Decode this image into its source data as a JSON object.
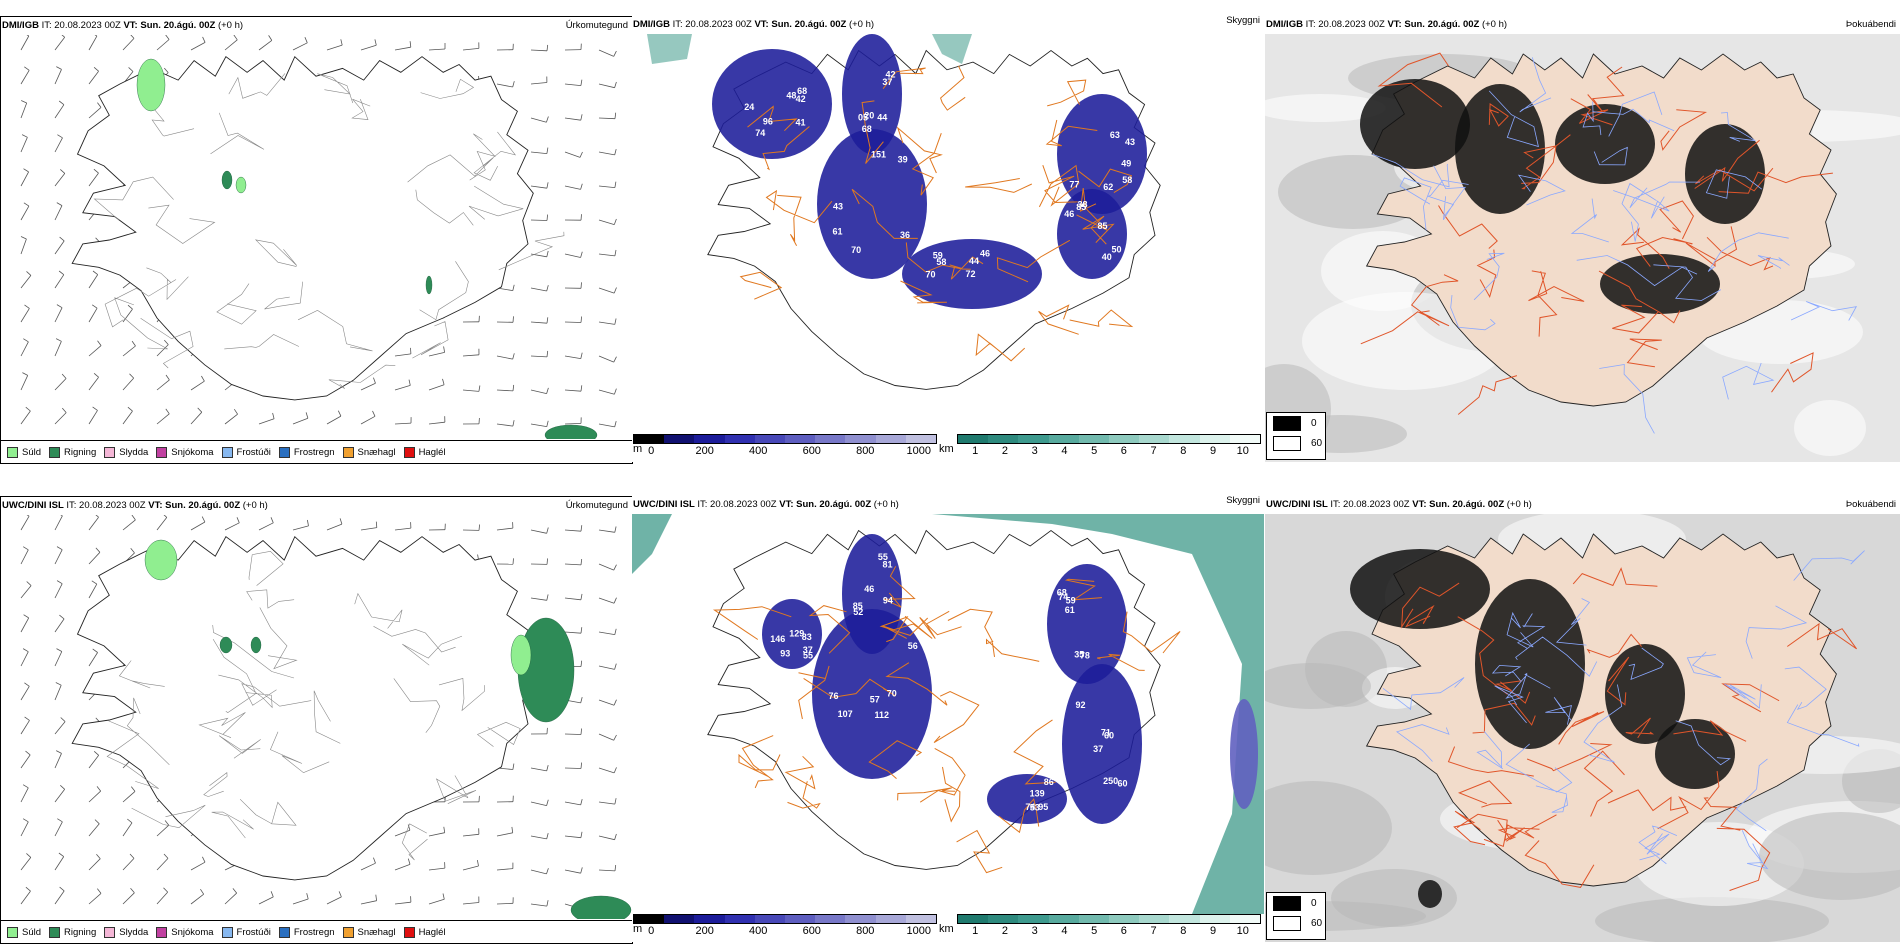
{
  "panels": [
    {
      "model": "DMI/IGB",
      "it": "IT: 20.08.2023 00Z",
      "vt_label": "VT:",
      "vt_value": "Sun. 20.ágú. 00Z",
      "lead": "(+0 h)",
      "title": "Úrkomutegund"
    },
    {
      "model": "DMI/IGB",
      "it": "IT: 20.08.2023 00Z",
      "vt_label": "VT:",
      "vt_value": "Sun. 20.ágú. 00Z",
      "lead": "(+0 h)",
      "title": "Skyggni"
    },
    {
      "model": "DMI/IGB",
      "it": "IT: 20.08.2023 00Z",
      "vt_label": "VT:",
      "vt_value": "Sun. 20.ágú. 00Z",
      "lead": "(+0 h)",
      "title": "Þokuábendi"
    },
    {
      "model": "UWC/DINI ISL",
      "it": "IT: 20.08.2023 00Z",
      "vt_label": "VT:",
      "vt_value": "Sun. 20.ágú. 00Z",
      "lead": "(+0 h)",
      "title": "Úrkomutegund"
    },
    {
      "model": "UWC/DINI ISL",
      "it": "IT: 20.08.2023 00Z",
      "vt_label": "VT:",
      "vt_value": "Sun. 20.ágú. 00Z",
      "lead": "(+0 h)",
      "title": "Skyggni"
    },
    {
      "model": "UWC/DINI ISL",
      "it": "IT: 20.08.2023 00Z",
      "vt_label": "VT:",
      "vt_value": "Sun. 20.ágú. 00Z",
      "lead": "(+0 h)",
      "title": "Þokuábendi"
    }
  ],
  "precip_legend": [
    {
      "label": "Súld",
      "color": "#90ee90"
    },
    {
      "label": "Rigning",
      "color": "#2e8b57"
    },
    {
      "label": "Slydda",
      "color": "#f4b6d6"
    },
    {
      "label": "Snjókoma",
      "color": "#c040a0"
    },
    {
      "label": "Frostúði",
      "color": "#87b8f0"
    },
    {
      "label": "Frostregn",
      "color": "#2a6fc0"
    },
    {
      "label": "Snæhagl",
      "color": "#f0a030"
    },
    {
      "label": "Haglél",
      "color": "#e01010"
    }
  ],
  "vis_m_scale": {
    "unit": "m",
    "ticks": [
      "0",
      "200",
      "400",
      "600",
      "800",
      "1000"
    ],
    "colors": [
      "#000000",
      "#101070",
      "#1c1c9a",
      "#3030b0",
      "#4848b8",
      "#5e5ec0",
      "#7878c8",
      "#9090d0",
      "#a8a8d8",
      "#c0c0e0"
    ]
  },
  "vis_km_scale": {
    "unit": "km",
    "ticks": [
      "1",
      "2",
      "3",
      "4",
      "5",
      "6",
      "7",
      "8",
      "9",
      "10"
    ],
    "colors": [
      "#1f7a6e",
      "#2e8a7e",
      "#3e9a8e",
      "#58aa9e",
      "#72baae",
      "#8ecabe",
      "#a8d8ce",
      "#c2e6de",
      "#dcf2ec",
      "#f2fbf8"
    ]
  },
  "fog_legend": [
    {
      "label": "0",
      "color": "#000000"
    },
    {
      "label": "60",
      "color": "#ffffff"
    }
  ],
  "vis_labels_top": [
    "41",
    "42",
    "36",
    "44",
    "77",
    "38",
    "68",
    "05",
    "39",
    "58",
    "43",
    "46",
    "42",
    "68",
    "61",
    "59",
    "58",
    "85",
    "96",
    "37",
    "43",
    "70",
    "62",
    "85",
    "74",
    "20",
    "151",
    "46",
    "63",
    "50",
    "24",
    "44",
    "70",
    "72",
    "49",
    "40",
    "48"
  ],
  "vis_labels_bottom": [
    "94",
    "70",
    "37",
    "68",
    "60",
    "86",
    "46",
    "56",
    "93",
    "35",
    "37",
    "74",
    "52",
    "57",
    "55",
    "61",
    "60",
    "53",
    "55",
    "76",
    "146",
    "59",
    "92",
    "95",
    "81",
    "107",
    "83",
    "74",
    "71",
    "139",
    "85",
    "112",
    "129",
    "78",
    "250"
  ]
}
